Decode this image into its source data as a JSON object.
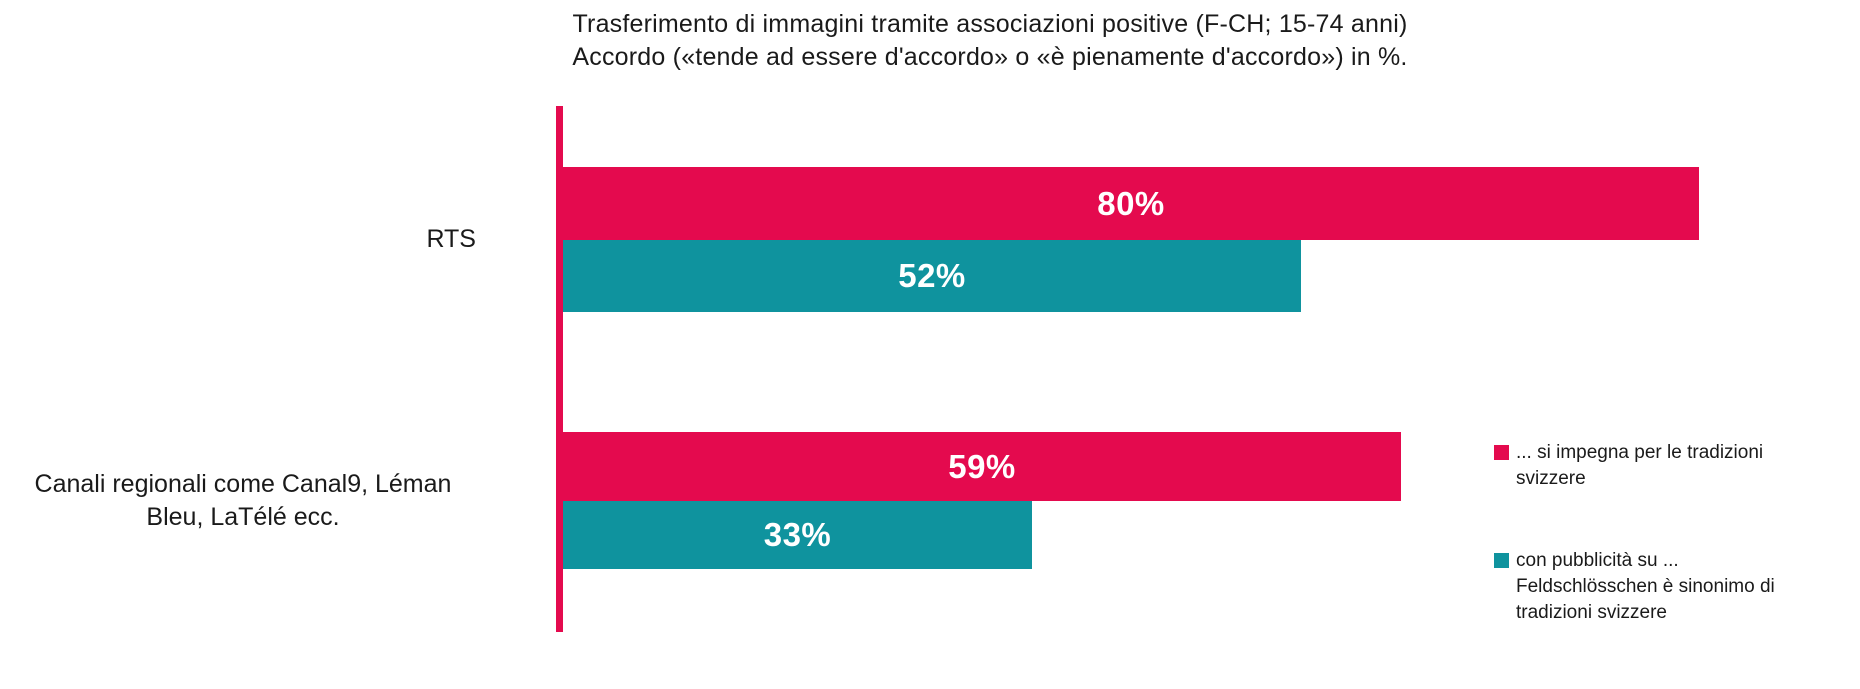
{
  "chart_data": {
    "type": "bar",
    "orientation": "horizontal",
    "title": "Trasferimento di immagini tramite associazioni positive (F-CH; 15-74 anni)",
    "subtitle": "Accordo («tende ad essere d'accordo» o «è pienamente d'accordo») in %.",
    "categories": [
      "RTS",
      "Canali regionali come Canal9, Léman Bleu, LaTélé ecc."
    ],
    "series": [
      {
        "name": "... si impegna per le tradizioni svizzere",
        "color": "#e40a4e",
        "values": [
          80,
          59
        ]
      },
      {
        "name": "con pubblicità su ... Feldschlösschen è sinonimo di tradizioni svizzere",
        "color": "#0f939e",
        "values": [
          52,
          33
        ]
      }
    ],
    "groups": [
      {
        "label": "RTS",
        "bars": [
          {
            "series_index": 0,
            "value": 80,
            "label": "80%"
          },
          {
            "series_index": 1,
            "value": 52,
            "label": "52%"
          }
        ]
      },
      {
        "label": "Canali regionali come Canal9, Léman Bleu, LaTélé ecc.",
        "bars": [
          {
            "series_index": 0,
            "value": 59,
            "label": "59%"
          },
          {
            "series_index": 1,
            "value": 33,
            "label": "33%"
          }
        ]
      }
    ],
    "xlim": [
      0,
      100
    ],
    "grid": false,
    "legend_position": "right",
    "value_suffix": "%",
    "colors": {
      "series_1": "#e40a4e",
      "series_2": "#0f939e",
      "axis_line": "#e40a4e",
      "value_text": "#ffffff",
      "text": "#1a1a1a",
      "background": "#ffffff"
    }
  }
}
